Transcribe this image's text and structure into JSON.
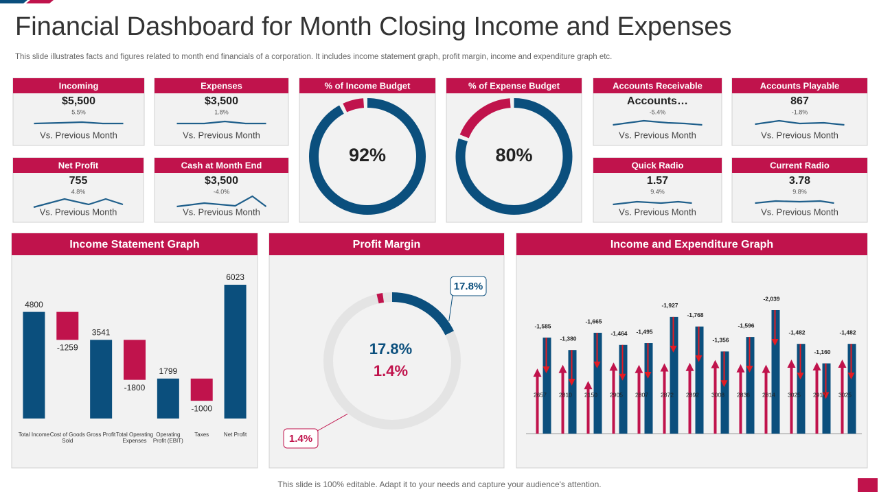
{
  "title": "Financial Dashboard for Month Closing Income and Expenses",
  "subtitle": "This slide illustrates facts and figures related to month end financials of a corporation. It includes income statement graph, profit margin, income and expenditure graph etc.",
  "footer": "This slide is 100% editable. Adapt it to your needs and capture your audience's attention.",
  "kpis": [
    {
      "label": "Incoming",
      "value": "$5,500",
      "change": "5.5%",
      "note": "Vs. Previous Month"
    },
    {
      "label": "Expenses",
      "value": "$3,500",
      "change": "1.8%",
      "note": "Vs. Previous Month"
    },
    {
      "label": "Accounts  Receivable",
      "value": "Accounts…",
      "change": "-5.4%",
      "note": "Vs. Previous Month"
    },
    {
      "label": "Accounts  Playable",
      "value": "867",
      "change": "-1.8%",
      "note": "Vs. Previous Month"
    },
    {
      "label": "Net Profit",
      "value": "755",
      "change": "4.8%",
      "note": "Vs. Previous  Month"
    },
    {
      "label": "Cash at Month End",
      "value": "$3,500",
      "change": "-4.0%",
      "note": "Vs. Previous Month"
    },
    {
      "label": "Quick Radio",
      "value": "1.57",
      "change": "9.4%",
      "note": "Vs. Previous Month"
    },
    {
      "label": "Current Radio",
      "value": "3.78",
      "change": "9.8%",
      "note": "Vs. Previous Month"
    }
  ],
  "chart_data": [
    {
      "type": "donut",
      "title": "% of Income Budget",
      "values": [
        92
      ],
      "value_labels": [
        "92%"
      ],
      "color": "#0b4f7d",
      "rest_color": "#c0134c"
    },
    {
      "type": "donut",
      "title": "% of Expense Budget",
      "values": [
        80
      ],
      "value_labels": [
        "80%"
      ],
      "color": "#0b4f7d",
      "rest_color": "#c0134c"
    },
    {
      "type": "waterfall",
      "title": "Income Statement Graph",
      "categories": [
        "Total Income",
        "Cost of Goods Sold",
        "Gross Profit",
        "Total Operating Expenses",
        "Operating Profit (EBIT)",
        "Taxes",
        "Net Profit"
      ],
      "values": [
        4800,
        -1259,
        3541,
        -1800,
        1799,
        -1000,
        6023
      ],
      "color": "#0b4f7d",
      "negative_color": "#c0134c"
    },
    {
      "type": "rings",
      "title": "Profit Margin",
      "values": [
        17.8,
        1.4
      ],
      "value_labels": [
        "17.8%",
        "1.4%"
      ],
      "colors": [
        "#0b4f7d",
        "#c0134c"
      ]
    },
    {
      "type": "arrows",
      "title": "Income and Expenditure Graph",
      "series": [
        {
          "color": "#c0134c",
          "values": [
            2657,
            2810,
            2150,
            2905,
            2807,
            2872,
            2892,
            3008,
            2836,
            2814,
            3025,
            2917,
            3025
          ]
        },
        {
          "color": "#0b4f7d",
          "values": [
            -1585,
            -1380,
            -1665,
            -1464,
            -1495,
            -1927,
            -1768,
            -1356,
            -1596,
            -2039,
            -1482,
            -1160,
            -1482
          ],
          "value_labels": [
            "-1,585",
            "-1,380",
            "-1,665",
            "-1,464",
            "-1,495",
            "-1,927",
            "-1,768",
            "-1,356",
            "-1,596",
            "-2,039",
            "-1,482",
            "-1,160",
            "-1,482"
          ]
        }
      ]
    }
  ]
}
